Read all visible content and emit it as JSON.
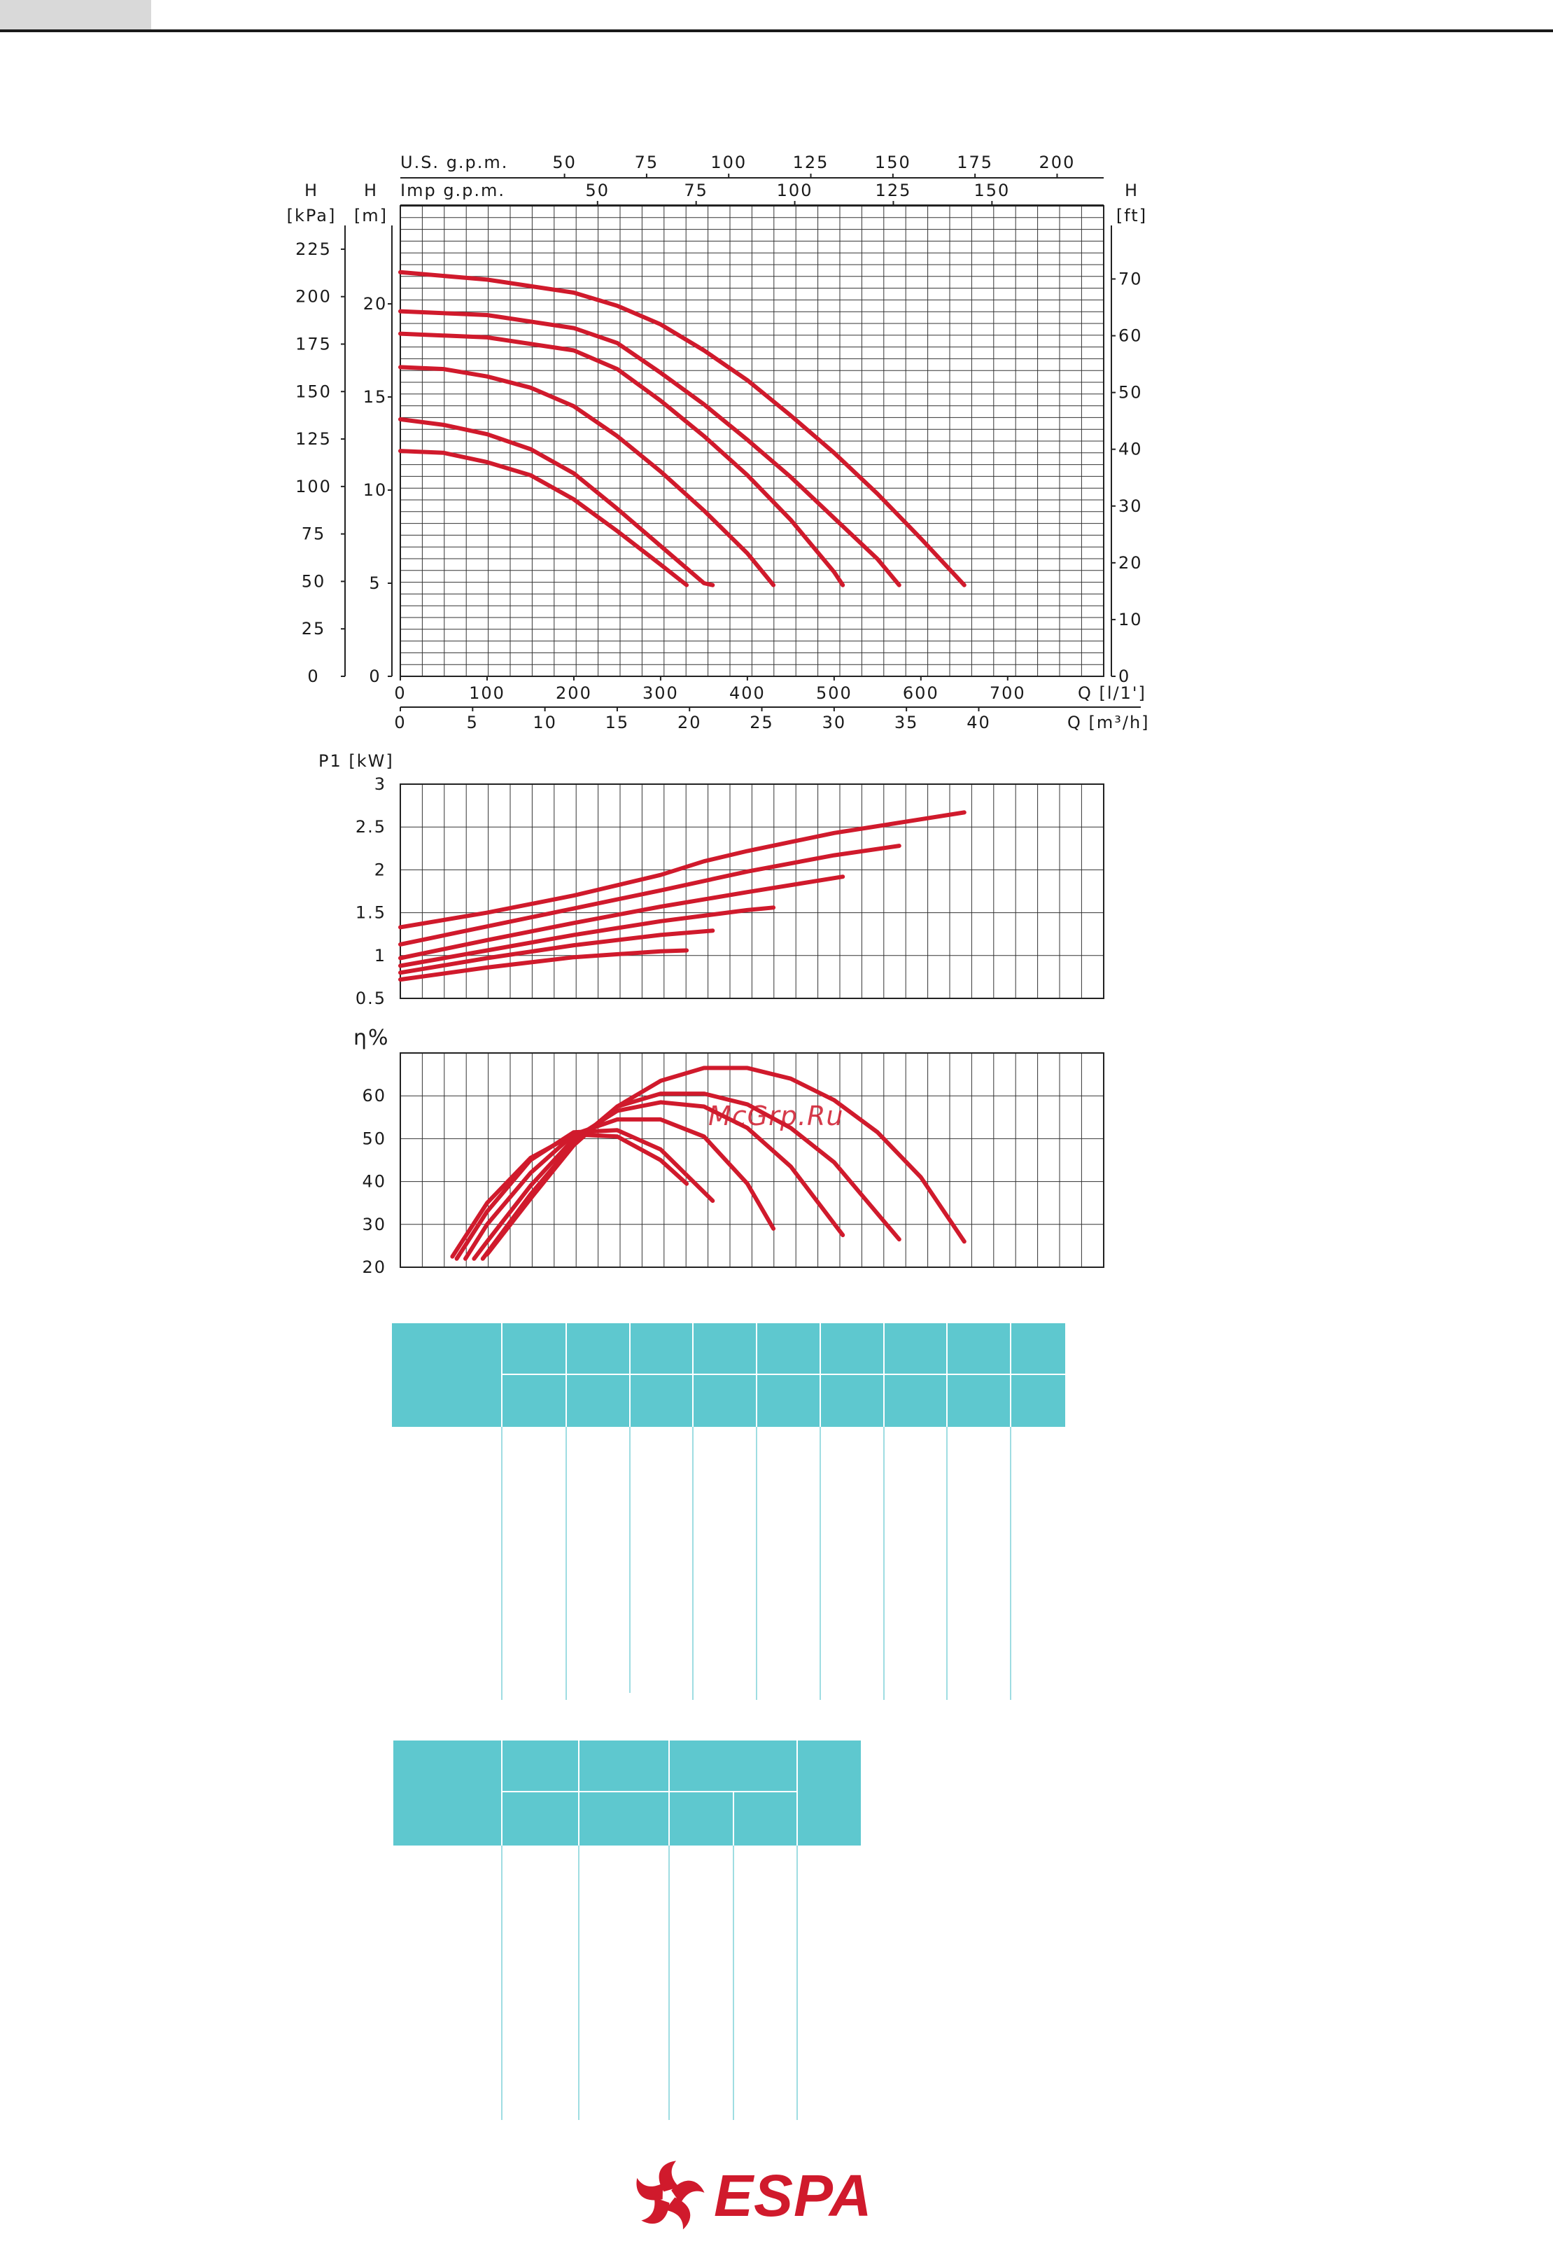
{
  "colors": {
    "curve": "#d01a2c",
    "grid": "#222222",
    "table_head": "#5ec8cf",
    "table_line": "#9fdde2",
    "logo": "#d01a2c"
  },
  "watermark": "McGrp.Ru",
  "brand": {
    "name": "ESPA",
    "icon": "espa-swirl-icon"
  },
  "chart_data": [
    {
      "type": "line",
      "title": "",
      "axes": {
        "top_usgpm": {
          "label": "U.S. g.p.m.",
          "ticks": [
            "50",
            "75",
            "100",
            "125",
            "150",
            "175",
            "200"
          ]
        },
        "top_impgpm": {
          "label": "Imp g.p.m.",
          "ticks": [
            "50",
            "75",
            "100",
            "125",
            "150"
          ]
        },
        "left_kpa": {
          "label_line1": "H",
          "label_line2": "[kPa]",
          "ticks": [
            "0",
            "25",
            "50",
            "75",
            "100",
            "125",
            "150",
            "175",
            "200",
            "225"
          ]
        },
        "left_m": {
          "label_line1": "H",
          "label_line2": "[m]",
          "ticks": [
            "0",
            "5",
            "10",
            "15",
            "20"
          ]
        },
        "right_ft": {
          "label_line1": "H",
          "label_line2": "[ft]",
          "ticks": [
            "0",
            "10",
            "20",
            "30",
            "40",
            "50",
            "60",
            "70"
          ]
        },
        "bottom_lmin": {
          "label": "Q [l/1']",
          "ticks": [
            "0",
            "100",
            "200",
            "300",
            "400",
            "500",
            "600",
            "700"
          ]
        },
        "bottom_m3h": {
          "label": "Q [m³/h]",
          "ticks": [
            "0",
            "5",
            "10",
            "15",
            "20",
            "25",
            "30",
            "35",
            "40"
          ]
        }
      },
      "xlim": [
        0,
        810
      ],
      "ylim": [
        0,
        25
      ],
      "grid": true,
      "series": [
        {
          "x": [
            0,
            50,
            100,
            150,
            200,
            250,
            300,
            330
          ],
          "y": [
            12.1,
            12.0,
            11.5,
            10.8,
            9.5,
            7.8,
            6.0,
            4.9
          ]
        },
        {
          "x": [
            0,
            50,
            100,
            150,
            200,
            250,
            300,
            350,
            360
          ],
          "y": [
            13.8,
            13.5,
            13.0,
            12.2,
            10.9,
            9.0,
            7.0,
            5.0,
            4.9
          ]
        },
        {
          "x": [
            0,
            50,
            100,
            150,
            200,
            250,
            300,
            350,
            400,
            430
          ],
          "y": [
            16.6,
            16.5,
            16.1,
            15.5,
            14.5,
            12.9,
            11.0,
            8.9,
            6.6,
            4.9
          ]
        },
        {
          "x": [
            0,
            100,
            200,
            250,
            300,
            350,
            400,
            450,
            500,
            510
          ],
          "y": [
            18.4,
            18.2,
            17.5,
            16.5,
            14.8,
            12.9,
            10.8,
            8.4,
            5.6,
            4.9
          ]
        },
        {
          "x": [
            0,
            100,
            200,
            250,
            300,
            350,
            400,
            450,
            500,
            550,
            575
          ],
          "y": [
            19.6,
            19.4,
            18.7,
            17.9,
            16.3,
            14.6,
            12.7,
            10.7,
            8.5,
            6.3,
            4.9
          ]
        },
        {
          "x": [
            0,
            100,
            200,
            250,
            300,
            350,
            400,
            450,
            500,
            550,
            600,
            650
          ],
          "y": [
            21.7,
            21.3,
            20.6,
            19.9,
            18.9,
            17.5,
            15.9,
            14.0,
            12.0,
            9.8,
            7.4,
            4.9
          ]
        }
      ]
    },
    {
      "type": "line",
      "title": "",
      "axes": {
        "left": {
          "label": "P1 [kW]",
          "ticks": [
            "0.5",
            "1",
            "1.5",
            "2",
            "2.5",
            "3"
          ]
        }
      },
      "xlim": [
        0,
        810
      ],
      "ylim": [
        0.5,
        3
      ],
      "grid": true,
      "series": [
        {
          "x": [
            0,
            100,
            200,
            300,
            330
          ],
          "y": [
            0.72,
            0.86,
            0.98,
            1.05,
            1.06
          ]
        },
        {
          "x": [
            0,
            100,
            200,
            300,
            360
          ],
          "y": [
            0.8,
            0.97,
            1.12,
            1.24,
            1.29
          ]
        },
        {
          "x": [
            0,
            100,
            200,
            300,
            400,
            430
          ],
          "y": [
            0.88,
            1.06,
            1.24,
            1.4,
            1.53,
            1.56
          ]
        },
        {
          "x": [
            0,
            100,
            200,
            300,
            400,
            510
          ],
          "y": [
            0.97,
            1.18,
            1.38,
            1.57,
            1.74,
            1.92
          ]
        },
        {
          "x": [
            0,
            100,
            200,
            300,
            400,
            500,
            575
          ],
          "y": [
            1.13,
            1.34,
            1.55,
            1.76,
            1.98,
            2.17,
            2.28
          ]
        },
        {
          "x": [
            0,
            100,
            200,
            300,
            350,
            400,
            500,
            600,
            650
          ],
          "y": [
            1.33,
            1.5,
            1.7,
            1.94,
            2.1,
            2.22,
            2.43,
            2.59,
            2.67
          ]
        }
      ]
    },
    {
      "type": "line",
      "title": "",
      "axes": {
        "left": {
          "label": "η%",
          "ticks": [
            "20",
            "30",
            "40",
            "50",
            "60"
          ]
        }
      },
      "xlim": [
        0,
        810
      ],
      "ylim": [
        20,
        70
      ],
      "grid": true,
      "series": [
        {
          "x": [
            60,
            100,
            150,
            200,
            250,
            300,
            330
          ],
          "y": [
            22.5,
            35,
            45.5,
            51,
            50.5,
            45,
            39.5
          ]
        },
        {
          "x": [
            65,
            100,
            150,
            200,
            250,
            300,
            360
          ],
          "y": [
            22,
            33,
            45,
            51.5,
            52,
            47.5,
            35.5
          ]
        },
        {
          "x": [
            75,
            100,
            150,
            200,
            250,
            300,
            350,
            400,
            430
          ],
          "y": [
            22,
            30,
            42,
            51,
            54.5,
            54.5,
            50.5,
            39.5,
            29
          ]
        },
        {
          "x": [
            85,
            100,
            150,
            200,
            250,
            300,
            350,
            400,
            450,
            510
          ],
          "y": [
            22,
            26,
            39,
            50,
            56.5,
            58.5,
            57.5,
            52.5,
            43.5,
            27.5
          ]
        },
        {
          "x": [
            95,
            150,
            200,
            250,
            300,
            350,
            400,
            450,
            500,
            575
          ],
          "y": [
            22,
            37,
            49,
            57.5,
            60.5,
            60.5,
            58,
            52.5,
            44.5,
            26.5
          ]
        },
        {
          "x": [
            100,
            150,
            200,
            250,
            300,
            350,
            400,
            450,
            500,
            550,
            600,
            650
          ],
          "y": [
            23,
            36,
            48.5,
            57.5,
            63.5,
            66.5,
            66.5,
            64,
            59,
            51.5,
            41,
            26
          ]
        }
      ]
    }
  ]
}
